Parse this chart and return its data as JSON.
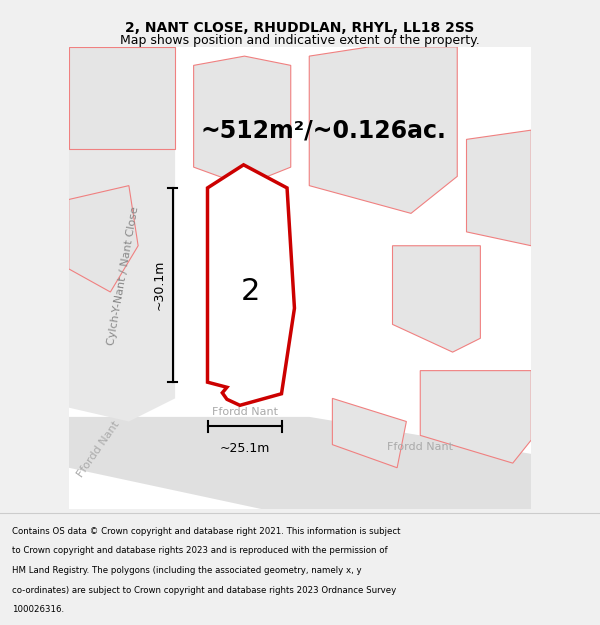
{
  "title": "2, NANT CLOSE, RHUDDLAN, RHYL, LL18 2SS",
  "subtitle": "Map shows position and indicative extent of the property.",
  "area_label": "~512m²/~0.126ac.",
  "plot_number": "2",
  "width_label": "~25.1m",
  "height_label": "~30.1m",
  "street_label_left": "Cylch-Y-Nant / Nant Close",
  "footer_lines": [
    "Contains OS data © Crown copyright and database right 2021. This information is subject",
    "to Crown copyright and database rights 2023 and is reproduced with the permission of",
    "HM Land Registry. The polygons (including the associated geometry, namely x, y",
    "co-ordinates) are subject to Crown copyright and database rights 2023 Ordnance Survey",
    "100026316."
  ],
  "bg_color": "#f0f0f0",
  "map_bg": "#ffffff",
  "plot_fill": "#ffffff",
  "plot_stroke": "#cc0000",
  "building_fill": "#d0d0d0",
  "other_plot_fill": "#e5e5e5",
  "other_plot_stroke": "#f08080",
  "road_fill": "#e0e0e0",
  "left_road_fill": "#e8e8e8",
  "title_fontsize": 10,
  "subtitle_fontsize": 9,
  "area_fontsize": 17,
  "plot_number_fontsize": 22,
  "street_fontsize": 8,
  "footer_fontsize": 6.2,
  "dim_fontsize": 9
}
